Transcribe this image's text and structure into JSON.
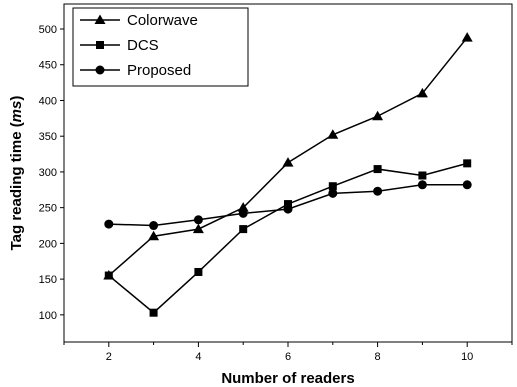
{
  "chart_data": {
    "type": "line",
    "title": "",
    "xlabel": "Number of readers",
    "ylabel_main": "Tag reading time (",
    "ylabel_unit": "ms",
    "ylabel_close": ")",
    "xlim": [
      1,
      11
    ],
    "ylim": [
      62,
      535
    ],
    "xticks": [
      2,
      4,
      6,
      8,
      10
    ],
    "yticks": [
      100,
      150,
      200,
      250,
      300,
      350,
      400,
      450,
      500
    ],
    "grid": false,
    "legend_position": "top-left",
    "x": [
      2,
      3,
      4,
      5,
      6,
      7,
      8,
      9,
      10
    ],
    "series": [
      {
        "name": "Colorwave",
        "marker": "triangle",
        "values": [
          155,
          210,
          220,
          250,
          313,
          352,
          378,
          410,
          488
        ]
      },
      {
        "name": "DCS",
        "marker": "square",
        "values": [
          155,
          103,
          160,
          220,
          255,
          280,
          304,
          295,
          312
        ]
      },
      {
        "name": "Proposed",
        "marker": "circle",
        "values": [
          227,
          225,
          233,
          242,
          248,
          270,
          273,
          282,
          282
        ]
      }
    ]
  }
}
